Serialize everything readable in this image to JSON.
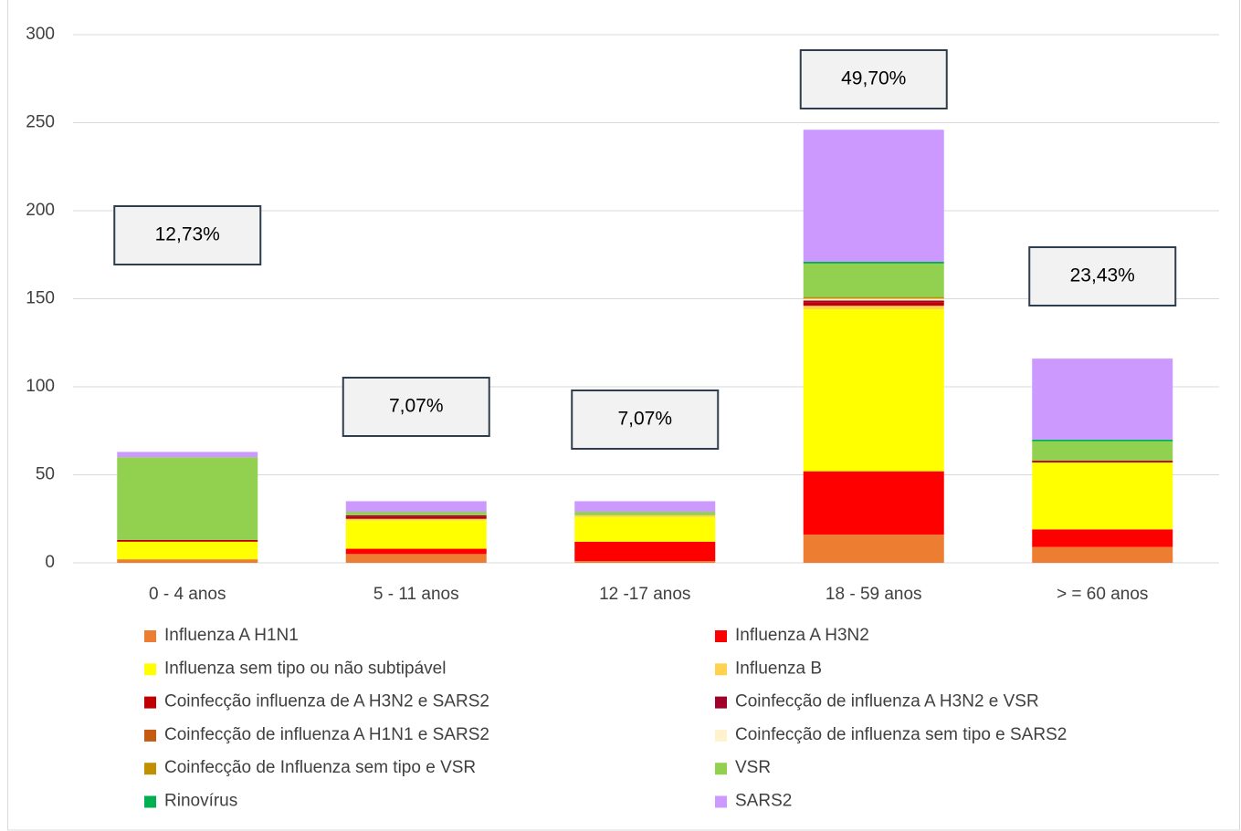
{
  "chart_data": {
    "type": "stacked_bar",
    "categories": [
      "0 - 4  anos",
      "5 - 11 anos",
      "12 -17 anos",
      "18 - 59 anos",
      "> = 60 anos"
    ],
    "series": [
      {
        "name": "Influenza A H1N1",
        "color": "#ED7D31",
        "values": [
          2,
          5,
          1,
          16,
          9
        ]
      },
      {
        "name": "Influenza A H3N2",
        "color": "#FF0000",
        "values": [
          0,
          3,
          11,
          36,
          10
        ]
      },
      {
        "name": "Influenza sem tipo ou não subtipável",
        "color": "#FFFF00",
        "values": [
          10,
          16,
          14,
          92,
          38
        ]
      },
      {
        "name": "Influenza B",
        "color": "#FFD34F",
        "values": [
          0,
          1,
          1,
          2,
          0
        ]
      },
      {
        "name": "Coinfecção influenza de A H3N2 e SARS2",
        "color": "#C00000",
        "values": [
          1,
          1,
          0,
          2,
          1
        ]
      },
      {
        "name": "Coinfecção de influenza A H3N2 e VSR",
        "color": "#A0002A",
        "values": [
          0,
          1,
          0,
          1,
          0
        ]
      },
      {
        "name": "Coinfecção de influenza A  H1N1  e SARS2",
        "color": "#C55A11",
        "values": [
          0,
          0,
          0,
          0,
          0
        ]
      },
      {
        "name": "Coinfecção de influenza sem tipo  e SARS2",
        "color": "#FFF2CC",
        "values": [
          0,
          0,
          0,
          1,
          0
        ]
      },
      {
        "name": "Coinfecção de Influenza  sem tipo e VSR",
        "color": "#BF9000",
        "values": [
          0,
          0,
          0,
          1,
          0
        ]
      },
      {
        "name": "VSR",
        "color": "#92D050",
        "values": [
          47,
          2,
          2,
          19,
          11
        ]
      },
      {
        "name": "Rinovírus",
        "color": "#00B050",
        "values": [
          0,
          0,
          0,
          1,
          1
        ]
      },
      {
        "name": "SARS2",
        "color": "#CC99FF",
        "values": [
          3,
          6,
          6,
          75,
          46
        ]
      }
    ],
    "annotations": [
      "12,73%",
      "7,07%",
      "7,07%",
      "49,70%",
      "23,43%"
    ],
    "ylim": [
      0,
      300
    ],
    "yticks": [
      0,
      50,
      100,
      150,
      200,
      250,
      300
    ],
    "grid": true
  }
}
